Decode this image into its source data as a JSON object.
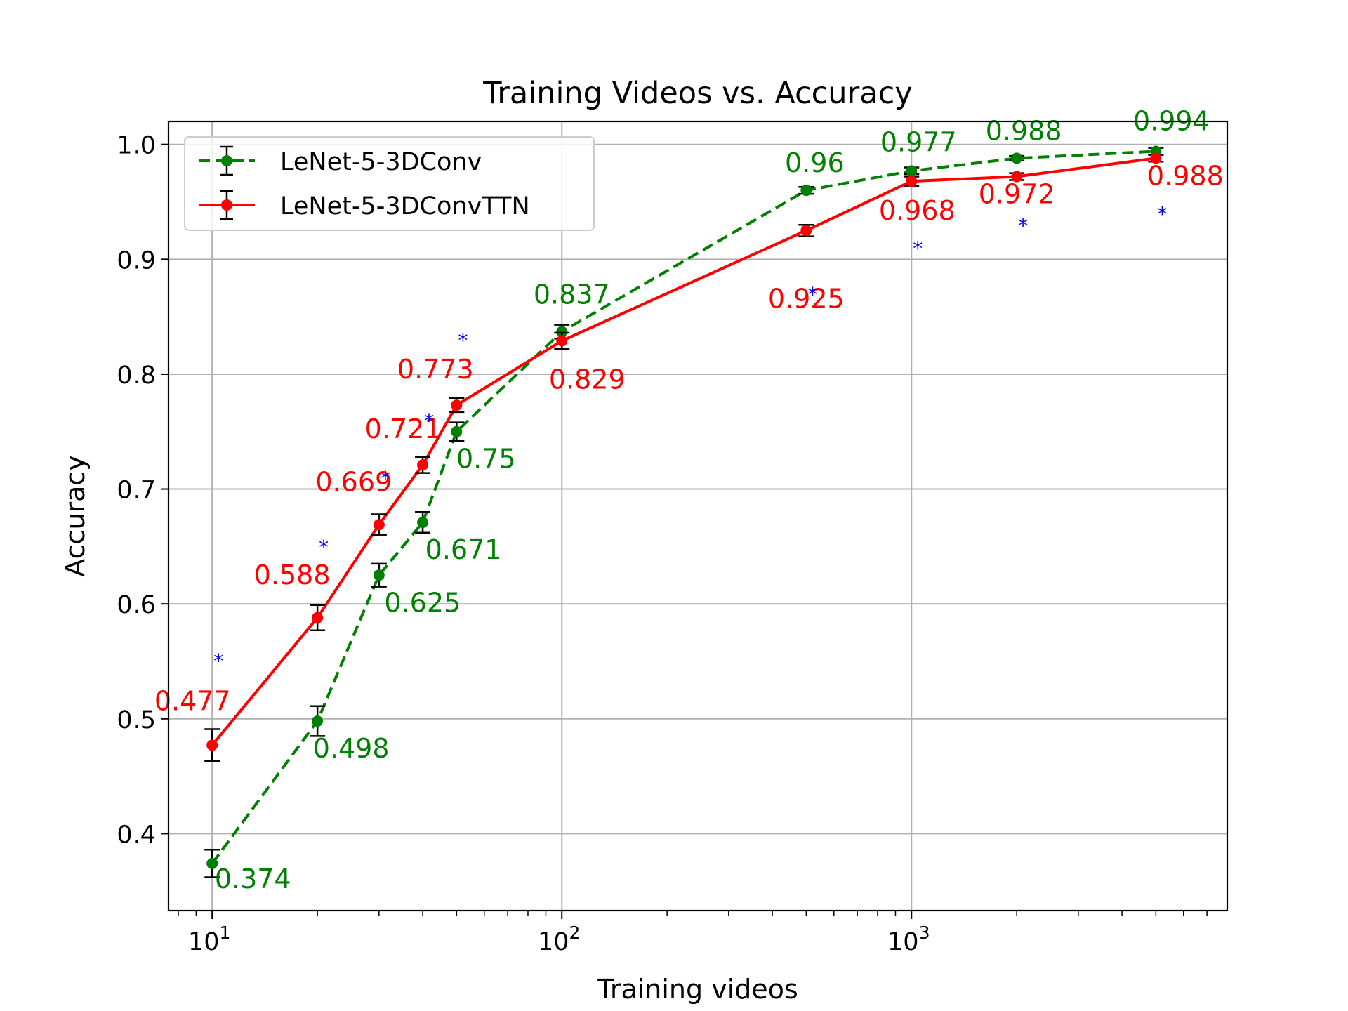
{
  "chart_data": {
    "type": "line",
    "title": "Training Videos vs. Accuracy",
    "xlabel": "Training videos",
    "ylabel": "Accuracy",
    "x_scale": "log",
    "xlim": [
      7.5,
      8000
    ],
    "ylim": [
      0.333,
      1.02
    ],
    "grid": true,
    "legend_position": "top-left",
    "x_ticks": [
      {
        "value": 10,
        "base": "10",
        "exp": "1"
      },
      {
        "value": 100,
        "base": "10",
        "exp": "2"
      },
      {
        "value": 1000,
        "base": "10",
        "exp": "3"
      }
    ],
    "y_ticks": [
      {
        "value": 0.4,
        "label": "0.4"
      },
      {
        "value": 0.5,
        "label": "0.5"
      },
      {
        "value": 0.6,
        "label": "0.6"
      },
      {
        "value": 0.7,
        "label": "0.7"
      },
      {
        "value": 0.8,
        "label": "0.8"
      },
      {
        "value": 0.9,
        "label": "0.9"
      },
      {
        "value": 1.0,
        "label": "1.0"
      }
    ],
    "x": [
      10,
      20,
      30,
      40,
      50,
      100,
      500,
      1000,
      2000,
      5000
    ],
    "series": [
      {
        "name": "LeNet-5-3DConv",
        "color": "#008000",
        "line_style": "dashed",
        "values": [
          0.374,
          0.498,
          0.625,
          0.671,
          0.75,
          0.837,
          0.96,
          0.977,
          0.988,
          0.994
        ],
        "errors": [
          0.012,
          0.013,
          0.01,
          0.009,
          0.008,
          0.006,
          0.003,
          0.003,
          0.002,
          0.003
        ],
        "labels": [
          "0.374",
          "0.498",
          "0.625",
          "0.671",
          "0.75",
          "0.837",
          "0.96",
          "0.977",
          "0.988",
          "0.994"
        ]
      },
      {
        "name": "LeNet-5-3DConvTTN",
        "color": "#ff0000",
        "line_style": "solid",
        "values": [
          0.477,
          0.588,
          0.669,
          0.721,
          0.773,
          0.829,
          0.925,
          0.968,
          0.972,
          0.988
        ],
        "errors": [
          0.014,
          0.011,
          0.009,
          0.007,
          0.006,
          0.007,
          0.005,
          0.004,
          0.003,
          0.003
        ],
        "labels": [
          "0.477",
          "0.588",
          "0.669",
          "0.721",
          "0.773",
          "0.829",
          "0.925",
          "0.968",
          "0.972",
          "0.988"
        ]
      }
    ],
    "significance_markers": {
      "symbol": "*",
      "color": "#0000ff",
      "x": [
        10,
        20,
        30,
        40,
        50,
        500,
        1000,
        2000,
        5000
      ]
    }
  }
}
